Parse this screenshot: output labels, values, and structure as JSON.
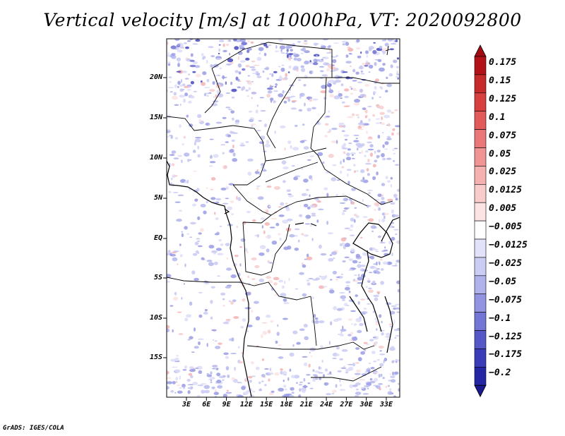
{
  "title": "Vertical velocity [m/s] at 1000hPa, VT: 2020092800",
  "footer": "GrADS: IGES/COLA",
  "lat_labels": [
    "20N",
    "15N",
    "10N",
    "5N",
    "EQ",
    "5S",
    "10S",
    "15S"
  ],
  "lon_labels": [
    "3E",
    "6E",
    "9E",
    "12E",
    "15E",
    "18E",
    "21E",
    "24E",
    "27E",
    "30E",
    "33E"
  ],
  "colorbar": {
    "labels": [
      "0.175",
      "0.15",
      "0.125",
      "0.1",
      "0.075",
      "0.05",
      "0.025",
      "0.0125",
      "0.005",
      "−0.005",
      "−0.0125",
      "−0.025",
      "−0.05",
      "−0.075",
      "−0.1",
      "−0.125",
      "−0.175",
      "−0.2"
    ],
    "colors": [
      "#b21218",
      "#c62a2a",
      "#d84040",
      "#e25a5a",
      "#ea7878",
      "#f09494",
      "#f5b0b0",
      "#f9cccc",
      "#fce4e4",
      "#ffffff",
      "#e2e2fa",
      "#cccdf4",
      "#b0b2ec",
      "#9294e2",
      "#7476d6",
      "#5658c8",
      "#3a3cb8",
      "#2426a4"
    ],
    "top_arrow_color": "#a00c12",
    "bottom_arrow_color": "#1a1a90"
  }
}
